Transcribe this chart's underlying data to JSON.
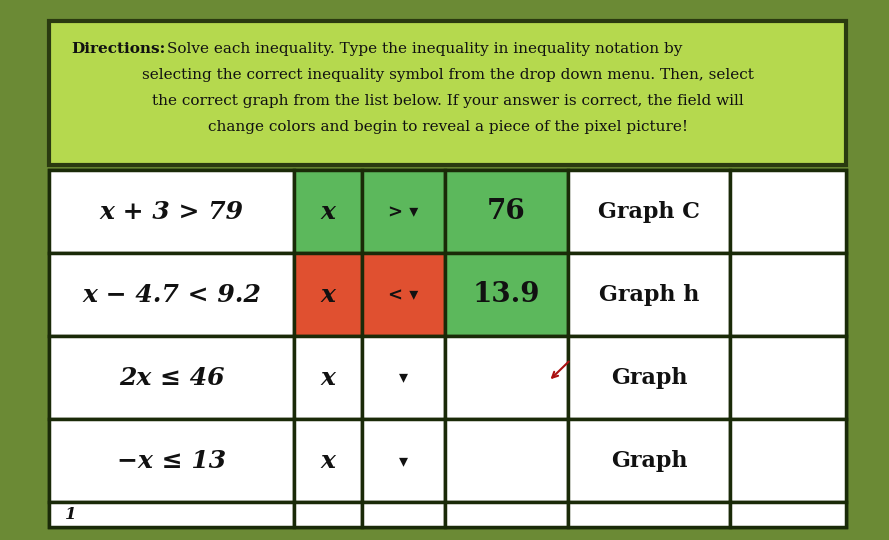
{
  "background_color": "#6b8a35",
  "title_box_color": "#b5d94e",
  "title_box_border": "#2a3a10",
  "rows": [
    {
      "inequality": "x + 3 > 79",
      "x_color": "#5cb85c",
      "symbol": "> ▾",
      "symbol_color": "#5cb85c",
      "answer": "76",
      "answer_color": "#5cb85c",
      "graph": "Graph C"
    },
    {
      "inequality": "x − 4.7 < 9.2",
      "x_color": "#e05030",
      "symbol": "< ▾",
      "symbol_color": "#e05030",
      "answer": "13.9",
      "answer_color": "#5cb85c",
      "graph": "Graph h"
    },
    {
      "inequality": "2x ≤ 46",
      "x_color": "#ffffff",
      "symbol": "▾",
      "symbol_color": "#ffffff",
      "answer": "",
      "answer_color": "#ffffff",
      "graph": "Graph"
    },
    {
      "inequality": "−x ≤ 13",
      "x_color": "#ffffff",
      "symbol": "▾",
      "symbol_color": "#ffffff",
      "answer": "",
      "answer_color": "#ffffff",
      "graph": "Graph"
    }
  ],
  "cell_border_color": "#1a2a08",
  "cell_bg_color": "#ffffff",
  "text_color": "#111111",
  "separator_color": "#5a7a28",
  "fig_width": 8.89,
  "fig_height": 5.4,
  "title_text_bold": "Directions:",
  "title_text_rest": " Solve each inequality. Type the inequality in inequality notation by\nselecting the correct inequality symbol from the drop down menu. Then, select\nthe correct graph from the list below. If your answer is correct, the field will\nchange colors and begin to reveal a piece of the pixel picture!",
  "bottom_label": "1",
  "cursor_row": 2,
  "cursor_col": 3
}
